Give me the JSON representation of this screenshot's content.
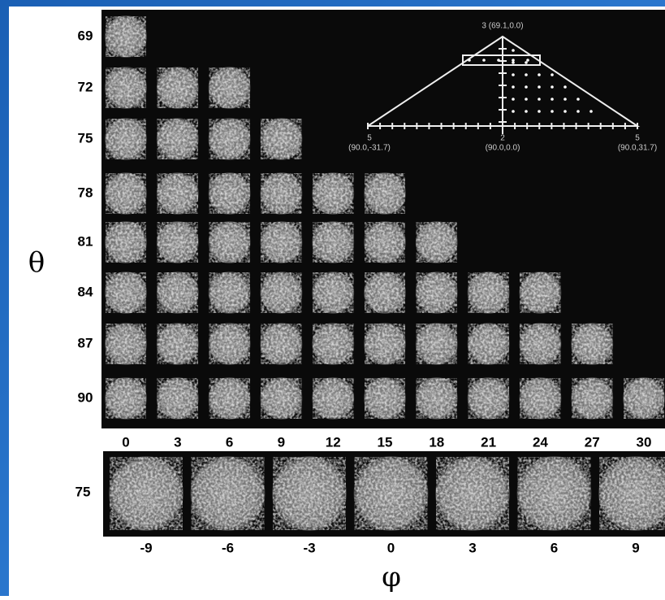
{
  "figure": {
    "theta_symbol": "θ",
    "phi_symbol": "φ",
    "theta_rows": [
      69,
      72,
      75,
      78,
      81,
      84,
      87,
      90
    ],
    "phi_columns": [
      0,
      3,
      6,
      9,
      12,
      15,
      18,
      21,
      24,
      27,
      30
    ],
    "bottom_row": {
      "theta": 75,
      "phi_columns": [
        -9,
        -6,
        -3,
        0,
        3,
        6,
        9
      ]
    },
    "inset": {
      "apex": "3 (69.1,0.0)",
      "left": {
        "number": "5",
        "coords": "(90.0,-31.7)"
      },
      "center": {
        "number": "2",
        "coords": "(90.0,0.0)"
      },
      "right": {
        "number": "5",
        "coords": "(90.0,31.7)"
      }
    }
  }
}
